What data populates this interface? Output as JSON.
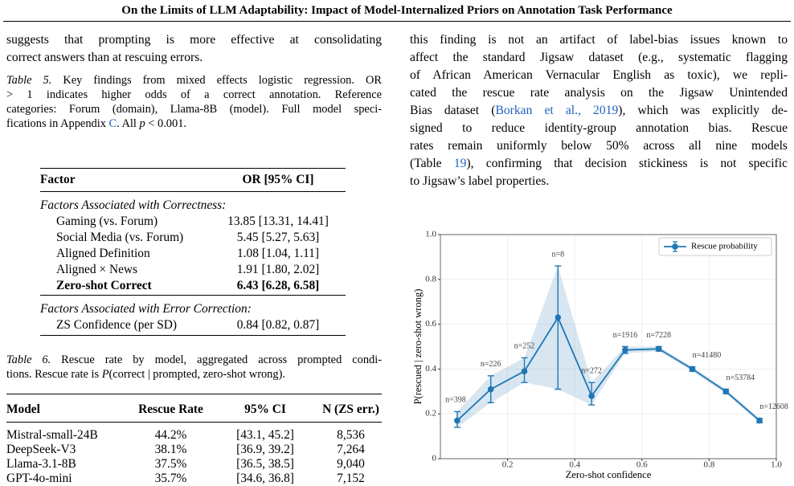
{
  "header": {
    "title": "On the Limits of LLM Adaptability: Impact of Model-Internalized Priors on Annotation Task Performance"
  },
  "left": {
    "paragraph": [
      [
        "suggests that prompting is more effective at consolidating"
      ],
      [
        "correct answers than at rescuing errors."
      ]
    ],
    "table5": {
      "caption": [
        [
          {
            "text": "Table 5.",
            "style": "italic"
          },
          " Key findings from mixed effects logistic regression. OR"
        ],
        [
          "> 1 indicates higher odds of a correct annotation.  Reference"
        ],
        [
          "categories: Forum (domain), Llama-8B (model). Full model speci-"
        ],
        [
          "fications in Appendix ",
          {
            "text": "C",
            "style": "link"
          },
          ". All ",
          {
            "text": "p",
            "style": "italic"
          },
          " < 0.001."
        ]
      ],
      "header": [
        "Factor",
        "OR [95% CI]"
      ],
      "sections": [
        {
          "title": "Factors Associated with Correctness:",
          "rows": [
            {
              "cells": [
                "Gaming (vs. Forum)",
                "13.85 [13.31, 14.41]"
              ]
            },
            {
              "cells": [
                "Social Media (vs. Forum)",
                "5.45 [5.27, 5.63]"
              ]
            },
            {
              "cells": [
                "Aligned Definition",
                "1.08 [1.04, 1.11]"
              ]
            },
            {
              "cells": [
                "Aligned × News",
                "1.91 [1.80, 2.02]"
              ]
            },
            {
              "cells": [
                "Zero-shot Correct",
                "6.43 [6.28, 6.58]"
              ],
              "bold": true
            }
          ]
        },
        {
          "title": "Factors Associated with Error Correction:",
          "rows": [
            {
              "cells": [
                "ZS Confidence (per SD)",
                "0.84 [0.82, 0.87]"
              ]
            }
          ]
        }
      ]
    },
    "table6": {
      "caption": [
        [
          {
            "text": "Table 6.",
            "style": "italic"
          },
          " Rescue rate by model, aggregated across prompted condi-"
        ],
        [
          "tions. Rescue rate is ",
          {
            "text": "P",
            "style": "italic"
          },
          "(correct | prompted, zero-shot wrong)."
        ]
      ],
      "header": [
        "Model",
        "Rescue Rate",
        "95% CI",
        "N (ZS err.)"
      ],
      "rows": [
        [
          "Mistral-small-24B",
          "44.2%",
          "[43.1, 45.2]",
          "8,536"
        ],
        [
          "DeepSeek-V3",
          "38.1%",
          "[36.9, 39.2]",
          "7,264"
        ],
        [
          "Llama-3.1-8B",
          "37.5%",
          "[36.5, 38.5]",
          "9,040"
        ],
        [
          "GPT-4o-mini",
          "35.7%",
          "[34.6, 36.8]",
          "7,152"
        ]
      ]
    }
  },
  "right": {
    "paragraph": [
      [
        "this finding is not an artifact of label-bias issues known to"
      ],
      [
        "affect the standard Jigsaw dataset (e.g., systematic flagging"
      ],
      [
        "of African American Vernacular English as toxic), we repli-"
      ],
      [
        "cated the rescue rate analysis on the Jigsaw Unintended"
      ],
      [
        "Bias dataset (",
        {
          "text": "Borkan et al., 2019",
          "style": "link"
        },
        "), which was explicitly de-"
      ],
      [
        "signed to reduce identity-group annotation bias.  Rescue"
      ],
      [
        "rates remain uniformly below 50% across all nine models"
      ],
      [
        "(Table ",
        {
          "text": "19",
          "style": "link"
        },
        "), confirming that decision stickiness is not specific"
      ],
      [
        "to Jigsaw’s label properties."
      ]
    ]
  },
  "chart_data": {
    "type": "line",
    "x_label": "Zero-shot confidence",
    "y_label": "P(rescued | zero-shot wrong)",
    "x": [
      0.05,
      0.15,
      0.25,
      0.35,
      0.45,
      0.55,
      0.65,
      0.75,
      0.85,
      0.95
    ],
    "series": [
      {
        "name": "Rescue probability",
        "color": "#1f77b4",
        "values": [
          0.17,
          0.31,
          0.39,
          0.63,
          0.28,
          0.485,
          0.49,
          0.4,
          0.3,
          0.17
        ],
        "ci_low": [
          0.14,
          0.25,
          0.34,
          0.31,
          0.24,
          0.47,
          0.48,
          0.39,
          0.29,
          0.16
        ],
        "ci_high": [
          0.21,
          0.37,
          0.45,
          0.86,
          0.34,
          0.5,
          0.5,
          0.41,
          0.31,
          0.18
        ]
      }
    ],
    "annotations": [
      "n=398",
      "n=226",
      "n=252",
      "n=8",
      "n=272",
      "n=1916",
      "n=7228",
      "n=41480",
      "n=53784",
      "n=12608"
    ],
    "xlim": [
      0,
      1
    ],
    "ylim": [
      0,
      1
    ],
    "xticks": [
      0.2,
      0.4,
      0.6,
      0.8,
      {
        "value": 1,
        "label": "1.0"
      }
    ],
    "yticks": [
      0,
      0.2,
      0.4,
      0.6,
      0.8,
      {
        "value": 1,
        "label": "1.0"
      }
    ],
    "grid": true,
    "legend": "upper right"
  }
}
